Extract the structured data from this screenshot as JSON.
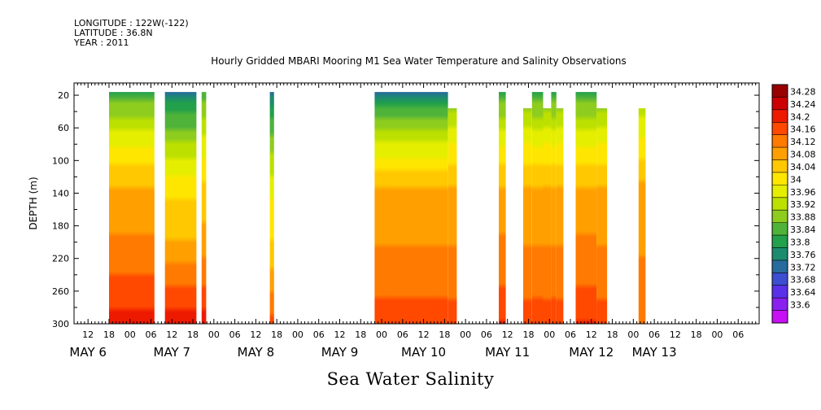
{
  "header": {
    "longitude": "LONGITUDE : 122W(-122)",
    "latitude": "LATITUDE : 36.8N",
    "year": "YEAR : 2011",
    "title": "Hourly Gridded MBARI Mooring M1 Sea Water Temperature and Salinity Observations"
  },
  "footer": {
    "caption": "Sea Water Salinity"
  },
  "chart_data": {
    "type": "heatmap",
    "title": "Hourly Gridded MBARI Mooring M1 Sea Water Temperature and Salinity Observations",
    "variable": "Sea Water Salinity",
    "ylabel": "DEPTH (m)",
    "xlabel": "",
    "x_range_hours": [
      8,
      204
    ],
    "y_range_m": [
      300,
      5
    ],
    "y_ticks": [
      20,
      60,
      100,
      140,
      180,
      220,
      260,
      300
    ],
    "x_hour_ticks": [
      {
        "h": 12,
        "label": "12"
      },
      {
        "h": 18,
        "label": "18"
      },
      {
        "h": 24,
        "label": "00"
      },
      {
        "h": 30,
        "label": "06"
      },
      {
        "h": 36,
        "label": "12"
      },
      {
        "h": 42,
        "label": "18"
      },
      {
        "h": 48,
        "label": "00"
      },
      {
        "h": 54,
        "label": "06"
      },
      {
        "h": 60,
        "label": "12"
      },
      {
        "h": 66,
        "label": "18"
      },
      {
        "h": 72,
        "label": "00"
      },
      {
        "h": 78,
        "label": "06"
      },
      {
        "h": 84,
        "label": "12"
      },
      {
        "h": 90,
        "label": "18"
      },
      {
        "h": 96,
        "label": "00"
      },
      {
        "h": 102,
        "label": "06"
      },
      {
        "h": 108,
        "label": "12"
      },
      {
        "h": 114,
        "label": "18"
      },
      {
        "h": 120,
        "label": "00"
      },
      {
        "h": 126,
        "label": "06"
      },
      {
        "h": 132,
        "label": "12"
      },
      {
        "h": 138,
        "label": "18"
      },
      {
        "h": 144,
        "label": "00"
      },
      {
        "h": 150,
        "label": "06"
      },
      {
        "h": 156,
        "label": "12"
      },
      {
        "h": 162,
        "label": "18"
      },
      {
        "h": 168,
        "label": "00"
      },
      {
        "h": 174,
        "label": "06"
      },
      {
        "h": 180,
        "label": "12"
      },
      {
        "h": 186,
        "label": "18"
      },
      {
        "h": 192,
        "label": "00"
      },
      {
        "h": 198,
        "label": "06"
      }
    ],
    "day_labels": [
      {
        "h": 12,
        "label": "MAY  6"
      },
      {
        "h": 36,
        "label": "MAY  7"
      },
      {
        "h": 60,
        "label": "MAY  8"
      },
      {
        "h": 84,
        "label": "MAY  9"
      },
      {
        "h": 108,
        "label": "MAY 10"
      },
      {
        "h": 132,
        "label": "MAY 11"
      },
      {
        "h": 156,
        "label": "MAY 12"
      },
      {
        "h": 174,
        "label": "MAY 13"
      }
    ],
    "colorbar": {
      "levels": [
        "34.28",
        "34.24",
        "34.2",
        "34.16",
        "34.12",
        "34.08",
        "34.04",
        "34",
        "33.96",
        "33.92",
        "33.88",
        "33.84",
        "33.8",
        "33.76",
        "33.72",
        "33.68",
        "33.64",
        "33.6"
      ],
      "colors": [
        "#990000",
        "#cc0000",
        "#ee1a00",
        "#ff4800",
        "#ff7a00",
        "#ffa000",
        "#ffc800",
        "#ffe600",
        "#e6ee00",
        "#bce000",
        "#8ecc1e",
        "#4fb33a",
        "#22a04a",
        "#1c8c6e",
        "#276c9c",
        "#3b4fd0",
        "#5a30e8",
        "#8a20f0",
        "#c810f5"
      ]
    },
    "data_blocks": [
      {
        "start_h": 18,
        "end_h": 31,
        "top_depth_m": 20,
        "s_surface": 33.82,
        "s_mid": 34.1,
        "s_deep": 34.22
      },
      {
        "start_h": 34,
        "end_h": 43,
        "top_depth_m": 20,
        "s_surface": 33.74,
        "s_mid": 34.04,
        "s_deep": 34.23
      },
      {
        "start_h": 44.5,
        "end_h": 45.8,
        "top_depth_m": 20,
        "s_surface": 33.84,
        "s_mid": 34.06,
        "s_deep": 34.22
      },
      {
        "start_h": 64,
        "end_h": 65.2,
        "top_depth_m": 20,
        "s_surface": 33.74,
        "s_mid": 34.0,
        "s_deep": 34.18
      },
      {
        "start_h": 94,
        "end_h": 115,
        "top_depth_m": 20,
        "s_surface": 33.74,
        "s_mid": 34.1,
        "s_deep": 34.18
      },
      {
        "start_h": 115,
        "end_h": 117.5,
        "top_depth_m": 40,
        "s_surface": 33.84,
        "s_mid": 34.1,
        "s_deep": 34.18
      },
      {
        "start_h": 129.5,
        "end_h": 131.5,
        "top_depth_m": 20,
        "s_surface": 33.82,
        "s_mid": 34.1,
        "s_deep": 34.2
      },
      {
        "start_h": 136.5,
        "end_h": 139,
        "top_depth_m": 40,
        "s_surface": 33.84,
        "s_mid": 34.1,
        "s_deep": 34.18
      },
      {
        "start_h": 139,
        "end_h": 142.2,
        "top_depth_m": 20,
        "s_surface": 33.82,
        "s_mid": 34.1,
        "s_deep": 34.18
      },
      {
        "start_h": 142.2,
        "end_h": 144.5,
        "top_depth_m": 40,
        "s_surface": 33.84,
        "s_mid": 34.1,
        "s_deep": 34.18
      },
      {
        "start_h": 144.5,
        "end_h": 146,
        "top_depth_m": 20,
        "s_surface": 33.82,
        "s_mid": 34.1,
        "s_deep": 34.18
      },
      {
        "start_h": 146,
        "end_h": 148,
        "top_depth_m": 40,
        "s_surface": 33.84,
        "s_mid": 34.1,
        "s_deep": 34.18
      },
      {
        "start_h": 151.5,
        "end_h": 157.5,
        "top_depth_m": 20,
        "s_surface": 33.82,
        "s_mid": 34.1,
        "s_deep": 34.2
      },
      {
        "start_h": 157.5,
        "end_h": 160.5,
        "top_depth_m": 40,
        "s_surface": 33.84,
        "s_mid": 34.1,
        "s_deep": 34.18
      },
      {
        "start_h": 169.5,
        "end_h": 171.5,
        "top_depth_m": 40,
        "s_surface": 33.88,
        "s_mid": 34.1,
        "s_deep": 34.16
      }
    ]
  }
}
